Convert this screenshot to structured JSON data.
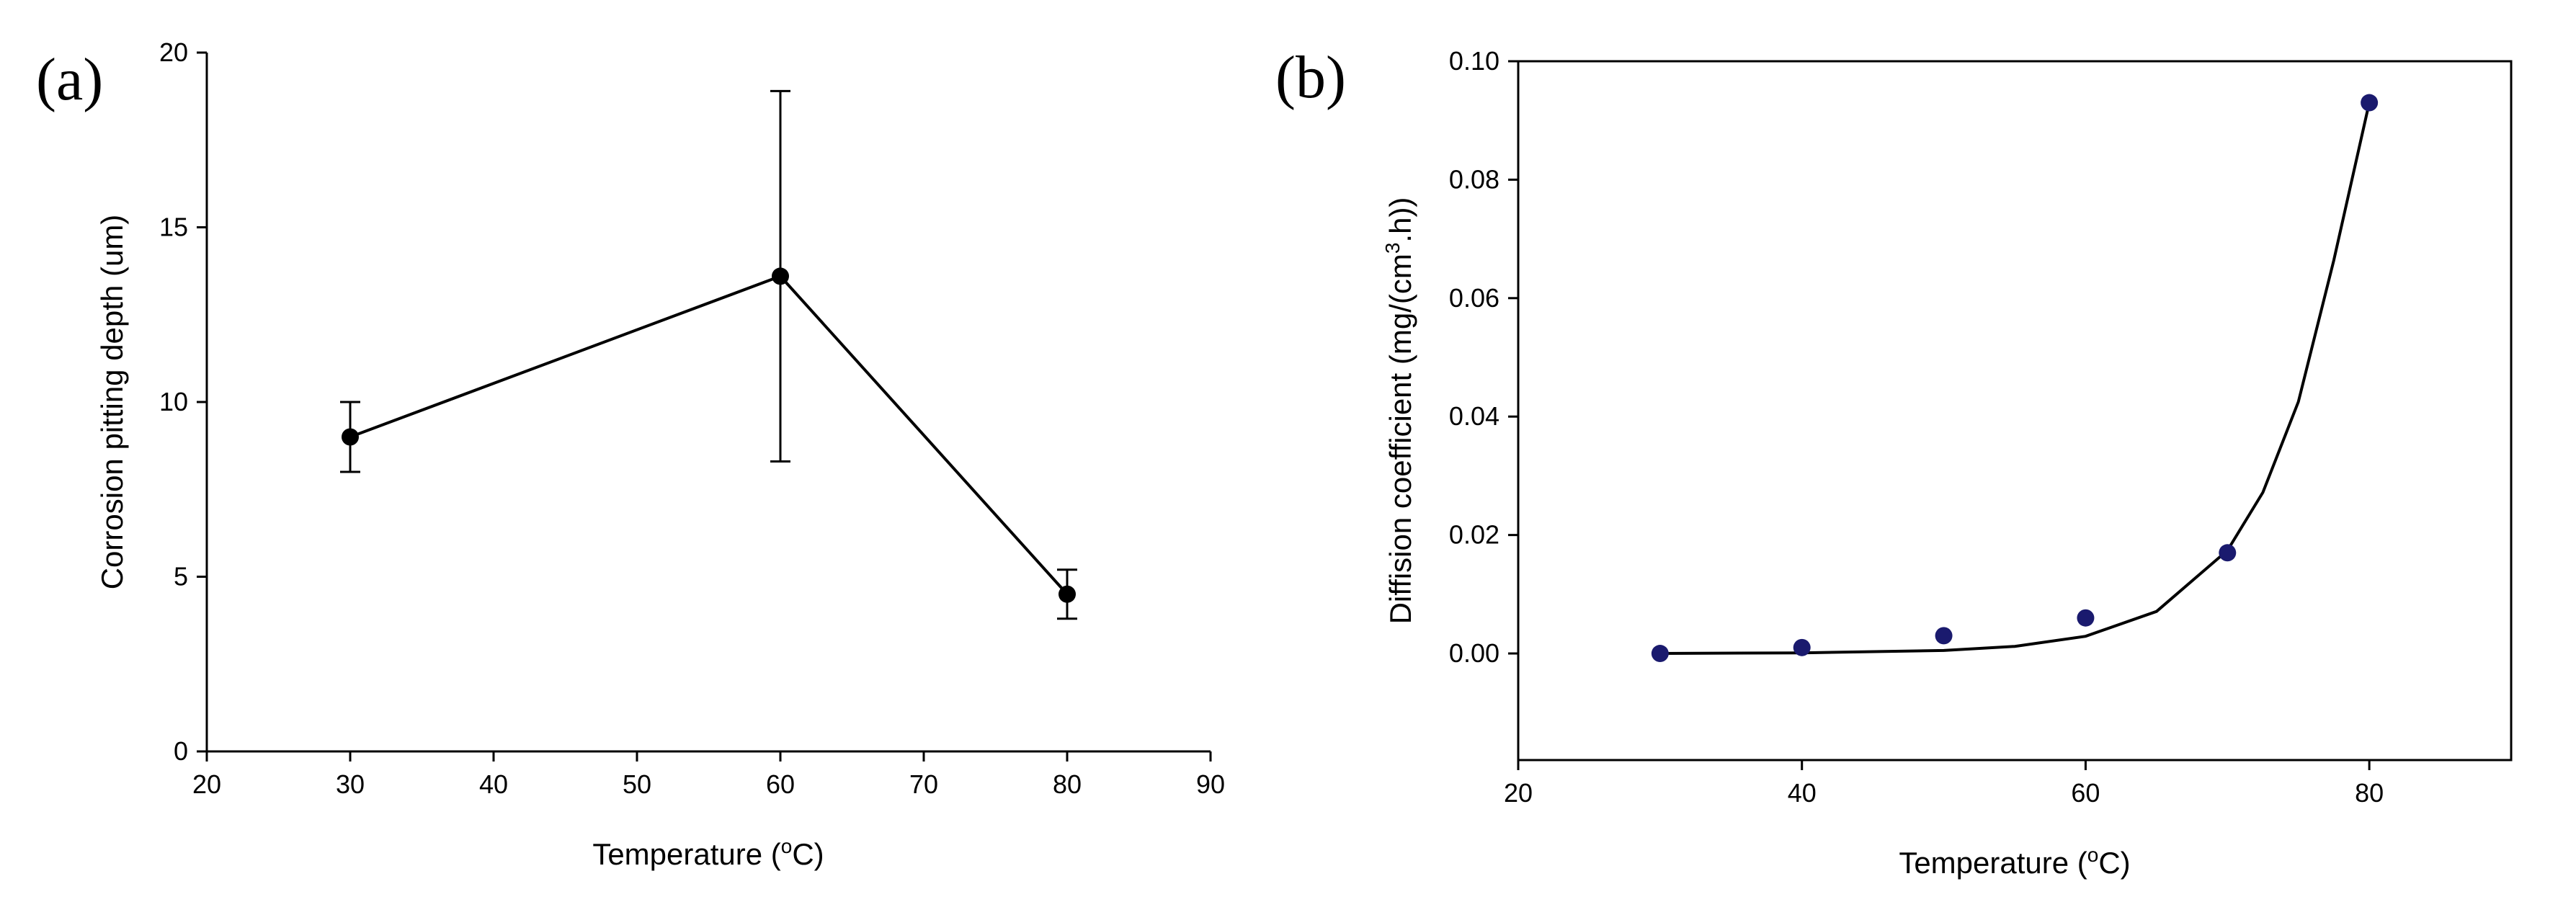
{
  "chart_data": [
    {
      "panel_label": "(a)",
      "type": "line",
      "xlabel": {
        "pre": "Temperature (",
        "sup": "o",
        "post": "C)"
      },
      "ylabel": "Corrosion pitting depth (um)",
      "xlim": [
        20,
        90
      ],
      "ylim": [
        0,
        20
      ],
      "xticks": [
        "20",
        "30",
        "40",
        "50",
        "60",
        "70",
        "80",
        "90"
      ],
      "yticks": [
        "0",
        "5",
        "10",
        "15",
        "20"
      ],
      "grid": false,
      "series": [
        {
          "x": [
            30,
            60,
            80
          ],
          "y": [
            9.0,
            13.6,
            4.5
          ],
          "error_low": [
            8.0,
            8.3,
            3.8
          ],
          "error_high": [
            10.0,
            18.9,
            5.2
          ],
          "color": "#000000"
        }
      ]
    },
    {
      "panel_label": "(b)",
      "type": "scatter",
      "xlabel": {
        "pre": "Temperature (",
        "sup": "o",
        "post": "C)"
      },
      "ylabel": {
        "pre": "Diffision coefficient (mg/(cm",
        "sup": "3",
        "post": ".h))"
      },
      "xlim": [
        20,
        90
      ],
      "ylim": [
        -0.018,
        0.1
      ],
      "xticks": [
        "20",
        "40",
        "60",
        "80"
      ],
      "yticks": [
        "0.00",
        "0.02",
        "0.04",
        "0.06",
        "0.08",
        "0.10"
      ],
      "grid": false,
      "series": [
        {
          "x": [
            30,
            40,
            50,
            60,
            70,
            80
          ],
          "y": [
            0.0,
            0.001,
            0.003,
            0.006,
            0.017,
            0.093
          ],
          "color": "#1a1a6e"
        }
      ],
      "fit": {
        "type": "exponential",
        "x": [
          30,
          40,
          50,
          55,
          60,
          65,
          70,
          72.5,
          75,
          77.5,
          80
        ],
        "y": [
          0.0,
          0.0001,
          0.0005,
          0.0012,
          0.0029,
          0.0071,
          0.0174,
          0.0272,
          0.0425,
          0.0664,
          0.093
        ],
        "color": "#000000"
      }
    }
  ]
}
